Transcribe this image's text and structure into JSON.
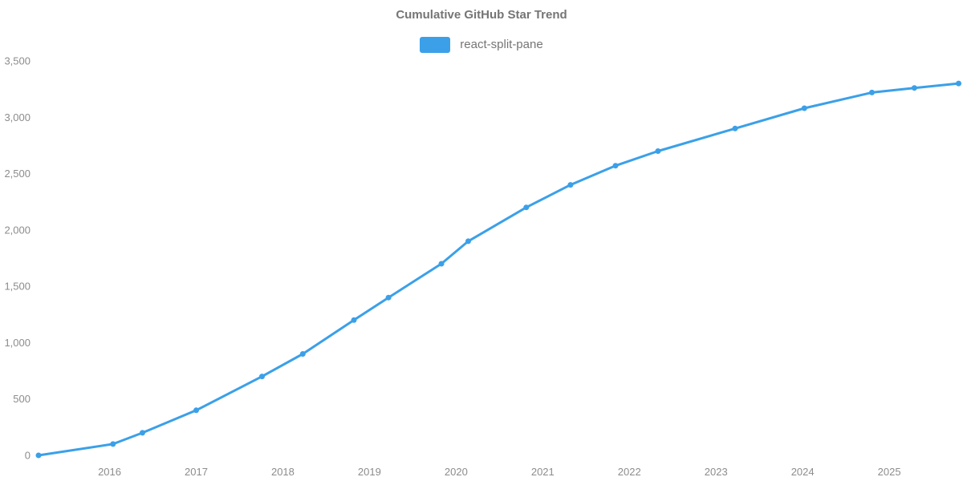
{
  "title": "Cumulative GitHub Star Trend",
  "legend": {
    "items": [
      {
        "label": "react-split-pane",
        "color": "#3ba0e8"
      }
    ]
  },
  "colors": {
    "background": "#ffffff",
    "line": "#3ba0e8",
    "title_text": "#757575",
    "legend_text": "#757575",
    "axis_text": "#8c8c8c"
  },
  "chart_data": {
    "type": "line",
    "title": "Cumulative GitHub Star Trend",
    "xlabel": "",
    "ylabel": "",
    "grid": false,
    "axis_lines": false,
    "legend_position": "top-center",
    "x_domain": [
      2015.18,
      2025.8
    ],
    "y_domain": [
      0,
      3500
    ],
    "x_ticks": [
      {
        "value": 2016,
        "label": "2016"
      },
      {
        "value": 2017,
        "label": "2017"
      },
      {
        "value": 2018,
        "label": "2018"
      },
      {
        "value": 2019,
        "label": "2019"
      },
      {
        "value": 2020,
        "label": "2020"
      },
      {
        "value": 2021,
        "label": "2021"
      },
      {
        "value": 2022,
        "label": "2022"
      },
      {
        "value": 2023,
        "label": "2023"
      },
      {
        "value": 2024,
        "label": "2024"
      },
      {
        "value": 2025,
        "label": "2025"
      }
    ],
    "y_ticks": [
      {
        "value": 0,
        "label": "0"
      },
      {
        "value": 500,
        "label": "500"
      },
      {
        "value": 1000,
        "label": "1,000"
      },
      {
        "value": 1500,
        "label": "1,500"
      },
      {
        "value": 2000,
        "label": "2,000"
      },
      {
        "value": 2500,
        "label": "2,500"
      },
      {
        "value": 3000,
        "label": "3,000"
      },
      {
        "value": 3500,
        "label": "3,500"
      }
    ],
    "series": [
      {
        "name": "react-split-pane",
        "color": "#3ba0e8",
        "points": [
          {
            "x": 2015.18,
            "y": 0
          },
          {
            "x": 2016.04,
            "y": 100
          },
          {
            "x": 2016.38,
            "y": 200
          },
          {
            "x": 2017.0,
            "y": 400
          },
          {
            "x": 2017.76,
            "y": 700
          },
          {
            "x": 2018.23,
            "y": 900
          },
          {
            "x": 2018.82,
            "y": 1200
          },
          {
            "x": 2019.22,
            "y": 1400
          },
          {
            "x": 2019.83,
            "y": 1700
          },
          {
            "x": 2020.14,
            "y": 1900
          },
          {
            "x": 2020.81,
            "y": 2200
          },
          {
            "x": 2021.32,
            "y": 2400
          },
          {
            "x": 2021.84,
            "y": 2570
          },
          {
            "x": 2022.33,
            "y": 2700
          },
          {
            "x": 2023.22,
            "y": 2900
          },
          {
            "x": 2024.02,
            "y": 3080
          },
          {
            "x": 2024.8,
            "y": 3220
          },
          {
            "x": 2025.29,
            "y": 3260
          },
          {
            "x": 2025.8,
            "y": 3300
          }
        ]
      }
    ]
  }
}
